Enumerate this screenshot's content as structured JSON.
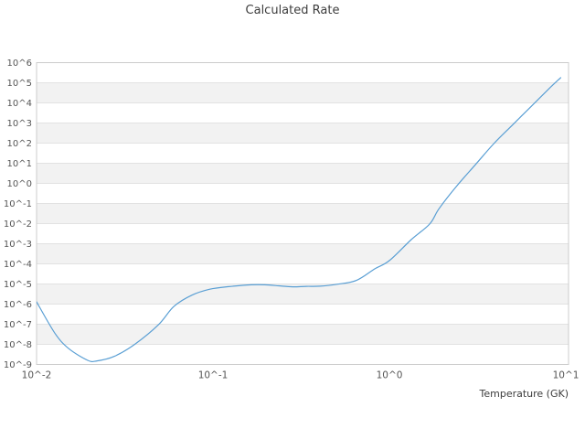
{
  "chart_data": {
    "type": "line",
    "title": "Calculated Rate",
    "xlabel": "Temperature (GK)",
    "ylabel": "",
    "x_scale": "log",
    "y_scale": "log",
    "xlim": [
      0.01,
      10.36
    ],
    "ylim": [
      1e-09,
      1000000.0
    ],
    "grid": "horizontal-only",
    "legend": "none",
    "x_tick_values": [
      0.01,
      0.1,
      1,
      10
    ],
    "x_tick_labels": [
      "10^-2",
      "10^-1",
      "10^0",
      "10^1"
    ],
    "y_tick_exponents": [
      6,
      5,
      4,
      3,
      2,
      1,
      0,
      -1,
      -2,
      -3,
      -4,
      -5,
      -6,
      -7,
      -8,
      -9
    ],
    "y_tick_labels": [
      "10^6",
      "10^5",
      "10^4",
      "10^3",
      "10^2",
      "10^1",
      "10^0",
      "10^-1",
      "10^-2",
      "10^-3",
      "10^-4",
      "10^-5",
      "10^-6",
      "10^-7",
      "10^-8",
      "10^-9"
    ],
    "series": [
      {
        "name": "calculated-rate",
        "color": "#5a9fd4",
        "x": [
          0.01,
          0.0127,
          0.0152,
          0.0195,
          0.022,
          0.0275,
          0.036,
          0.049,
          0.06,
          0.076,
          0.096,
          0.123,
          0.165,
          0.197,
          0.236,
          0.283,
          0.338,
          0.405,
          0.51,
          0.65,
          0.825,
          1.0,
          1.33,
          1.69,
          1.91,
          2.42,
          3.08,
          3.91,
          4.97,
          6.26,
          7.96,
          9.35
        ],
        "y": [
          1.3e-06,
          3.6e-08,
          6.2e-09,
          1.6e-09,
          1.5e-09,
          2.5e-09,
          1e-08,
          9.3e-08,
          7.6e-07,
          2.8e-06,
          5.5e-06,
          7.4e-06,
          9.1e-06,
          9.1e-06,
          8.1e-06,
          7.2e-06,
          7.6e-06,
          7.8e-06,
          9.8e-06,
          1.5e-05,
          5.6e-05,
          0.000145,
          0.0016,
          0.0095,
          0.055,
          0.78,
          8.7,
          95,
          780,
          5800,
          47000.0,
          180000.0
        ]
      }
    ],
    "colors": {
      "line": "#5a9fd4",
      "band": "#f2f2f2",
      "grid": "#e2e2e2",
      "border": "#cccccc",
      "tick_text": "#555555",
      "title_text": "#3d3d3d",
      "background": "#ffffff"
    }
  }
}
